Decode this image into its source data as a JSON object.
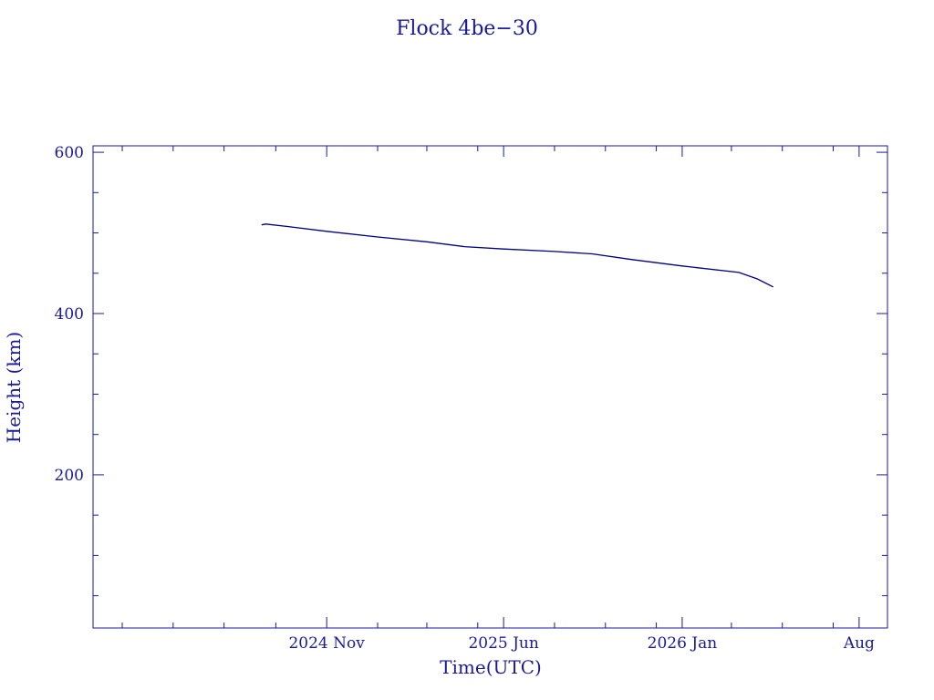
{
  "colors": {
    "line": "#000080",
    "axes": "#1a1a99",
    "text": "#1a1a99",
    "background": "#ffffff"
  },
  "chart_data": {
    "type": "line",
    "title": "Flock 4be−30",
    "xlabel": "Time(UTC)",
    "ylabel": "Height (km)",
    "xlim": [
      "2024-01-26",
      "2026-09-04"
    ],
    "ylim": [
      10,
      608
    ],
    "x_scale": "date",
    "grid": false,
    "legend": "none",
    "x_ticks": [
      {
        "date": "2024-11-01",
        "label": "2024 Nov"
      },
      {
        "date": "2025-06-01",
        "label": "2025 Jun"
      },
      {
        "date": "2026-01-01",
        "label": "2026 Jan"
      },
      {
        "date": "2026-08-01",
        "label": "Aug"
      }
    ],
    "x_minor_ticks": [
      "2024-03-01",
      "2024-05-01",
      "2024-07-01",
      "2024-09-01",
      "2025-01-01",
      "2025-03-01",
      "2025-05-01",
      "2025-08-01",
      "2025-10-01",
      "2025-12-01",
      "2026-03-01",
      "2026-05-01",
      "2026-07-01"
    ],
    "y_ticks": [
      {
        "value": 200,
        "label": "200"
      },
      {
        "value": 400,
        "label": "400"
      },
      {
        "value": 600,
        "label": "600"
      }
    ],
    "y_minor_ticks": [
      50,
      100,
      150,
      250,
      300,
      350,
      450,
      500,
      550
    ],
    "series": [
      {
        "values": [
          {
            "x": "2024-08-15",
            "y": 510
          },
          {
            "x": "2024-08-20",
            "y": 511
          },
          {
            "x": "2024-09-15",
            "y": 508
          },
          {
            "x": "2024-11-01",
            "y": 502
          },
          {
            "x": "2025-01-01",
            "y": 495
          },
          {
            "x": "2025-03-01",
            "y": 489
          },
          {
            "x": "2025-04-15",
            "y": 483
          },
          {
            "x": "2025-06-01",
            "y": 480
          },
          {
            "x": "2025-08-01",
            "y": 477
          },
          {
            "x": "2025-09-15",
            "y": 474
          },
          {
            "x": "2025-11-01",
            "y": 467
          },
          {
            "x": "2026-01-01",
            "y": 459
          },
          {
            "x": "2026-03-10",
            "y": 451
          },
          {
            "x": "2026-04-01",
            "y": 443
          },
          {
            "x": "2026-04-20",
            "y": 433
          }
        ]
      }
    ]
  }
}
